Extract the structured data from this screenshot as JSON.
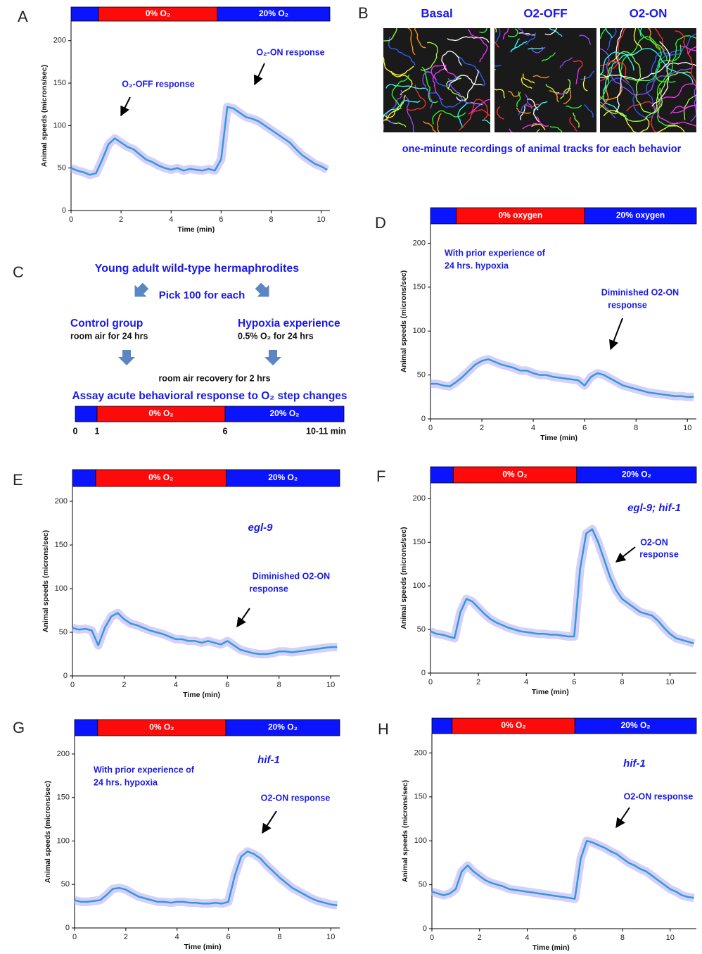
{
  "chart_data": [
    {
      "panel": "A",
      "type": "line",
      "xlabel": "Time (min)",
      "ylabel": "Animal speeds (microns/sec)",
      "xlim": [
        0,
        10.35
      ],
      "ylim": [
        0,
        223
      ],
      "xticks": [
        0,
        2,
        4,
        6,
        8,
        10
      ],
      "yticks": [
        0,
        50,
        100,
        150,
        200
      ],
      "phases": [
        {
          "start": 0,
          "end": 1.1,
          "color": "#0a14ff",
          "label": null
        },
        {
          "start": 1.1,
          "end": 5.85,
          "color": "#ff0a0a",
          "label": "0% O₂"
        },
        {
          "start": 5.85,
          "end": 10.35,
          "color": "#0a14ff",
          "label": "20% O₂"
        }
      ],
      "annotations": [
        "O₂-OFF response",
        "O₂-ON response"
      ],
      "x": [
        0,
        0.25,
        0.5,
        0.75,
        1,
        1.25,
        1.5,
        1.75,
        2,
        2.25,
        2.5,
        2.75,
        3,
        3.25,
        3.5,
        3.75,
        4,
        4.25,
        4.5,
        4.75,
        5,
        5.25,
        5.5,
        5.75,
        6,
        6.25,
        6.5,
        6.75,
        7,
        7.25,
        7.5,
        7.75,
        8,
        8.25,
        8.5,
        8.75,
        9,
        9.25,
        9.5,
        9.75,
        10,
        10.25
      ],
      "series": [
        {
          "color": "#3399dd",
          "values": [
            50,
            47,
            45,
            42,
            44,
            60,
            78,
            85,
            80,
            75,
            72,
            66,
            60,
            57,
            53,
            50,
            48,
            50,
            47,
            49,
            48,
            47,
            49,
            47,
            60,
            122,
            120,
            115,
            110,
            108,
            105,
            100,
            95,
            90,
            85,
            80,
            72,
            65,
            60,
            55,
            52,
            48
          ]
        }
      ]
    },
    {
      "panel": "D",
      "type": "line",
      "xlabel": "Time (min)",
      "ylabel": "Animal speeds (microns/sec)",
      "xlim": [
        0,
        10.35
      ],
      "ylim": [
        0,
        222
      ],
      "xticks": [
        0,
        2,
        4,
        6,
        8,
        10
      ],
      "yticks": [
        0,
        50,
        100,
        150,
        200
      ],
      "phases": [
        {
          "start": 0,
          "end": 1,
          "color": "#0a14ff",
          "label": null
        },
        {
          "start": 1,
          "end": 6,
          "color": "#ff0a0a",
          "label": "0% oxygen"
        },
        {
          "start": 6,
          "end": 10.35,
          "color": "#0a14ff",
          "label": "20% oxygen"
        }
      ],
      "annotations": [
        "With prior experience of",
        "24 hrs. hypoxia",
        "Diminished O2-ON",
        "response"
      ],
      "x": [
        0,
        0.25,
        0.5,
        0.75,
        1,
        1.25,
        1.5,
        1.75,
        2,
        2.25,
        2.5,
        2.75,
        3,
        3.25,
        3.5,
        3.75,
        4,
        4.25,
        4.5,
        4.75,
        5,
        5.25,
        5.5,
        5.75,
        6,
        6.25,
        6.5,
        6.75,
        7,
        7.25,
        7.5,
        7.75,
        8,
        8.25,
        8.5,
        8.75,
        9,
        9.25,
        9.5,
        9.75,
        10,
        10.25
      ],
      "series": [
        {
          "color": "#3399dd",
          "values": [
            40,
            40,
            38,
            37,
            42,
            48,
            55,
            62,
            66,
            68,
            65,
            62,
            60,
            58,
            55,
            55,
            52,
            50,
            50,
            48,
            47,
            46,
            45,
            44,
            38,
            48,
            52,
            50,
            46,
            42,
            38,
            36,
            34,
            32,
            30,
            29,
            28,
            27,
            26,
            26,
            25,
            25
          ]
        }
      ]
    },
    {
      "panel": "E",
      "type": "line",
      "xlabel": "Time (min)",
      "ylabel": "Animal speeds (microns/sec)",
      "xlim": [
        0,
        10.35
      ],
      "ylim": [
        0,
        217
      ],
      "xticks": [
        0,
        2,
        4,
        6,
        8,
        10
      ],
      "yticks": [
        0,
        50,
        100,
        150,
        200
      ],
      "phases": [
        {
          "start": 0,
          "end": 0.9,
          "color": "#0a14ff",
          "label": null
        },
        {
          "start": 0.9,
          "end": 5.95,
          "color": "#ff0a0a",
          "label": "0% O₂"
        },
        {
          "start": 5.95,
          "end": 10.35,
          "color": "#0a14ff",
          "label": "20% O₂"
        }
      ],
      "genotype": "egl-9",
      "annotations": [
        "Diminished O2-ON",
        "response"
      ],
      "x": [
        0,
        0.25,
        0.5,
        0.75,
        1,
        1.25,
        1.5,
        1.75,
        2,
        2.25,
        2.5,
        2.75,
        3,
        3.25,
        3.5,
        3.75,
        4,
        4.25,
        4.5,
        4.75,
        5,
        5.25,
        5.5,
        5.75,
        6,
        6.25,
        6.5,
        6.75,
        7,
        7.25,
        7.5,
        7.75,
        8,
        8.25,
        8.5,
        8.75,
        9,
        9.25,
        9.5,
        9.75,
        10,
        10.25
      ],
      "series": [
        {
          "color": "#3399dd",
          "values": [
            55,
            53,
            54,
            52,
            35,
            55,
            68,
            72,
            65,
            60,
            58,
            55,
            52,
            50,
            48,
            45,
            42,
            42,
            40,
            40,
            38,
            40,
            38,
            36,
            40,
            35,
            30,
            28,
            26,
            25,
            25,
            26,
            28,
            28,
            27,
            28,
            29,
            30,
            31,
            32,
            33,
            33
          ]
        }
      ]
    },
    {
      "panel": "F",
      "type": "line",
      "xlabel": "Time (min)",
      "ylabel": "Animal speeds (microns/sec)",
      "xlim": [
        0,
        11.1
      ],
      "ylim": [
        0,
        218
      ],
      "xticks": [
        0,
        2,
        4,
        6,
        8,
        10
      ],
      "yticks": [
        0,
        50,
        100,
        150,
        200
      ],
      "phases": [
        {
          "start": 0,
          "end": 0.95,
          "color": "#0a14ff",
          "label": null
        },
        {
          "start": 0.95,
          "end": 6.1,
          "color": "#ff0a0a",
          "label": "0% O₂"
        },
        {
          "start": 6.1,
          "end": 11.1,
          "color": "#0a14ff",
          "label": "20% O₂"
        }
      ],
      "genotype": "egl-9; hif-1",
      "annotations": [
        "O2-ON",
        "response"
      ],
      "x": [
        0,
        0.25,
        0.5,
        0.75,
        1,
        1.25,
        1.5,
        1.75,
        2,
        2.25,
        2.5,
        2.75,
        3,
        3.25,
        3.5,
        3.75,
        4,
        4.25,
        4.5,
        4.75,
        5,
        5.25,
        5.5,
        5.75,
        6,
        6.25,
        6.5,
        6.75,
        7,
        7.25,
        7.5,
        7.75,
        8,
        8.25,
        8.5,
        8.75,
        9,
        9.25,
        9.5,
        9.75,
        10,
        10.25,
        10.5,
        10.75,
        11
      ],
      "series": [
        {
          "color": "#3399dd",
          "values": [
            48,
            45,
            44,
            42,
            40,
            70,
            85,
            82,
            75,
            68,
            62,
            58,
            55,
            52,
            50,
            48,
            47,
            46,
            45,
            45,
            44,
            44,
            43,
            42,
            42,
            120,
            160,
            165,
            150,
            130,
            110,
            95,
            85,
            80,
            75,
            70,
            68,
            66,
            60,
            52,
            45,
            40,
            38,
            36,
            34
          ]
        }
      ]
    },
    {
      "panel": "G",
      "type": "line",
      "xlabel": "Time (min)",
      "ylabel": "Animal speeds (microns/sec)",
      "xlim": [
        0,
        10.35
      ],
      "ylim": [
        0,
        221
      ],
      "xticks": [
        0,
        2,
        4,
        6,
        8,
        10
      ],
      "yticks": [
        0,
        50,
        100,
        150,
        200
      ],
      "phases": [
        {
          "start": 0,
          "end": 0.9,
          "color": "#0a14ff",
          "label": null
        },
        {
          "start": 0.9,
          "end": 5.9,
          "color": "#ff0a0a",
          "label": "0% O₂"
        },
        {
          "start": 5.9,
          "end": 10.35,
          "color": "#0a14ff",
          "label": "20% O₂"
        }
      ],
      "genotype": "hif-1",
      "annotations": [
        "With prior experience of",
        "24 hrs. hypoxia",
        "O2-ON response"
      ],
      "x": [
        0,
        0.25,
        0.5,
        0.75,
        1,
        1.25,
        1.5,
        1.75,
        2,
        2.25,
        2.5,
        2.75,
        3,
        3.25,
        3.5,
        3.75,
        4,
        4.25,
        4.5,
        4.75,
        5,
        5.25,
        5.5,
        5.75,
        6,
        6.25,
        6.5,
        6.75,
        7,
        7.25,
        7.5,
        7.75,
        8,
        8.25,
        8.5,
        8.75,
        9,
        9.25,
        9.5,
        9.75,
        10,
        10.25
      ],
      "series": [
        {
          "color": "#3399dd",
          "values": [
            32,
            30,
            30,
            31,
            32,
            38,
            45,
            46,
            44,
            40,
            36,
            34,
            32,
            30,
            30,
            29,
            30,
            30,
            29,
            29,
            28,
            28,
            29,
            28,
            30,
            60,
            82,
            88,
            85,
            80,
            72,
            65,
            58,
            52,
            46,
            42,
            38,
            34,
            31,
            29,
            27,
            26
          ]
        }
      ]
    },
    {
      "panel": "H",
      "type": "line",
      "xlabel": "Time (min)",
      "ylabel": "Animal speeds (microns/sec)",
      "xlim": [
        0,
        11.1
      ],
      "ylim": [
        0,
        222
      ],
      "xticks": [
        0,
        2,
        4,
        6,
        8,
        10
      ],
      "yticks": [
        0,
        50,
        100,
        150,
        200
      ],
      "phases": [
        {
          "start": 0,
          "end": 0.85,
          "color": "#0a14ff",
          "label": null
        },
        {
          "start": 0.85,
          "end": 6.0,
          "color": "#ff0a0a",
          "label": "0% O₂"
        },
        {
          "start": 6.0,
          "end": 11.1,
          "color": "#0a14ff",
          "label": "20% O₂"
        }
      ],
      "genotype": "hif-1",
      "annotations": [
        "O2-ON response"
      ],
      "x": [
        0,
        0.25,
        0.5,
        0.75,
        1,
        1.25,
        1.5,
        1.75,
        2,
        2.25,
        2.5,
        2.75,
        3,
        3.25,
        3.5,
        3.75,
        4,
        4.25,
        4.5,
        4.75,
        5,
        5.25,
        5.5,
        5.75,
        6,
        6.25,
        6.5,
        6.75,
        7,
        7.25,
        7.5,
        7.75,
        8,
        8.25,
        8.5,
        8.75,
        9,
        9.25,
        9.5,
        9.75,
        10,
        10.25,
        10.5,
        10.75,
        11
      ],
      "series": [
        {
          "color": "#3399dd",
          "values": [
            42,
            40,
            38,
            40,
            45,
            65,
            72,
            65,
            60,
            55,
            52,
            50,
            48,
            45,
            44,
            43,
            42,
            41,
            40,
            39,
            38,
            37,
            36,
            35,
            34,
            80,
            100,
            98,
            95,
            92,
            88,
            85,
            80,
            75,
            72,
            68,
            65,
            60,
            55,
            50,
            45,
            42,
            38,
            36,
            35
          ]
        }
      ]
    }
  ],
  "panel_b": {
    "panel": "B",
    "columns": [
      "Basal",
      "O2-OFF",
      "O2-ON"
    ],
    "caption": "one-minute recordings of animal tracks for each behavior"
  },
  "panel_c": {
    "panel": "C",
    "title": "Young adult wild-type hermaphrodites",
    "pick": "Pick 100 for each",
    "groups": [
      {
        "name": "Control group",
        "condition": "room air for 24 hrs"
      },
      {
        "name": "Hypoxia experience",
        "condition": "0.5% O₂ for 24 hrs"
      }
    ],
    "recovery": "room air recovery for 2 hrs",
    "assay": "Assay acute behavioral response to O₂ step changes",
    "phases": [
      {
        "color": "#0a14ff",
        "label": null
      },
      {
        "color": "#ff0a0a",
        "label": "0% O₂"
      },
      {
        "color": "#0a14ff",
        "label": "20% O₂"
      }
    ],
    "timeline_labels": [
      "0",
      "1",
      "6",
      "10-11 min"
    ]
  }
}
